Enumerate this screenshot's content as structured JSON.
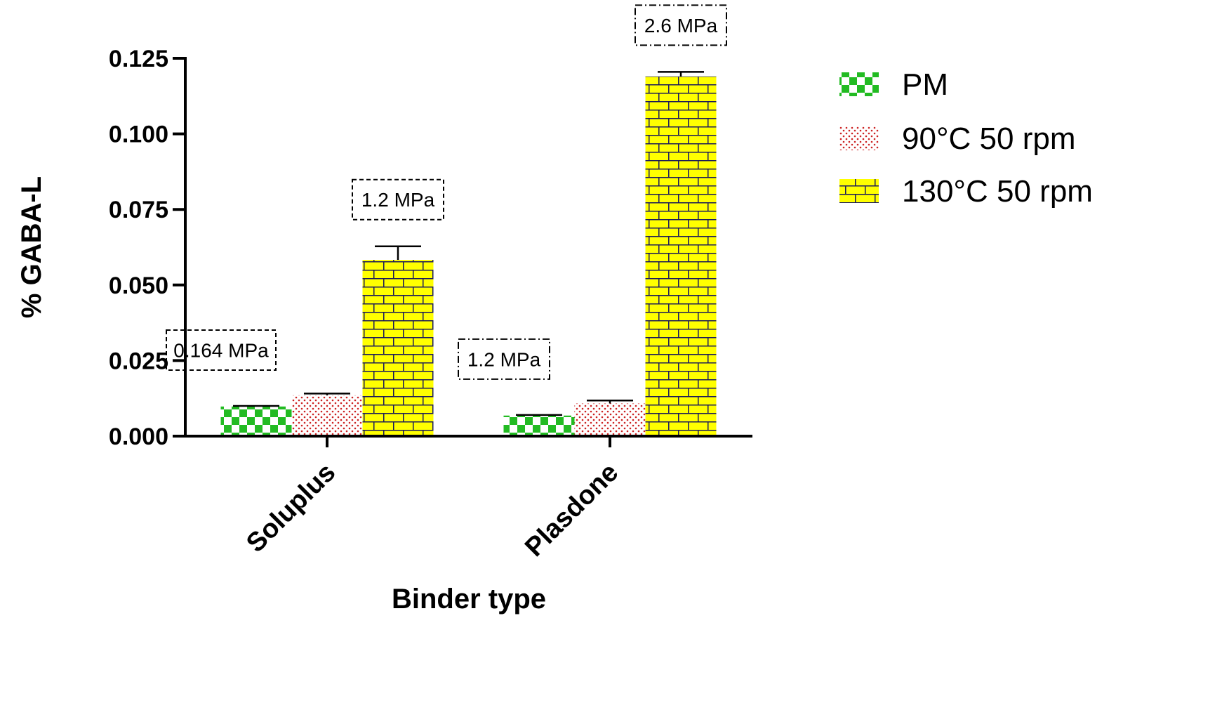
{
  "chart_data": {
    "type": "bar",
    "xlabel": "Binder type",
    "ylabel": "% GABA-L",
    "ylim": [
      0,
      0.125
    ],
    "yticks": [
      "0.000",
      "0.025",
      "0.050",
      "0.075",
      "0.100",
      "0.125"
    ],
    "categories": [
      "Soluplus",
      "Plasdone"
    ],
    "series": [
      {
        "name": "PM",
        "values": [
          0.0098,
          0.0068
        ],
        "errors": [
          0.0002,
          0.0002
        ],
        "pattern": "checker",
        "color": "#22bb22"
      },
      {
        "name": "90°C 50 rpm",
        "values": [
          0.0135,
          0.0108
        ],
        "errors": [
          0.0006,
          0.001
        ],
        "pattern": "dots",
        "color": "#cc2222"
      },
      {
        "name": "130°C 50 rpm",
        "values": [
          0.0583,
          0.119
        ],
        "errors": [
          0.0045,
          0.0015
        ],
        "pattern": "brick",
        "color": "#ffff00"
      }
    ],
    "annotations": [
      {
        "text": "0.164 MPa",
        "category": 0,
        "series": 0,
        "style": "dashed"
      },
      {
        "text": "1.2 MPa",
        "category": 0,
        "series": 2,
        "style": "dashed"
      },
      {
        "text": "1.2 MPa",
        "category": 1,
        "series": 0,
        "style": "dashdot"
      },
      {
        "text": "2.6 MPa",
        "category": 1,
        "series": 2,
        "style": "dashdot"
      }
    ],
    "legend_position": "right",
    "grid": false
  }
}
